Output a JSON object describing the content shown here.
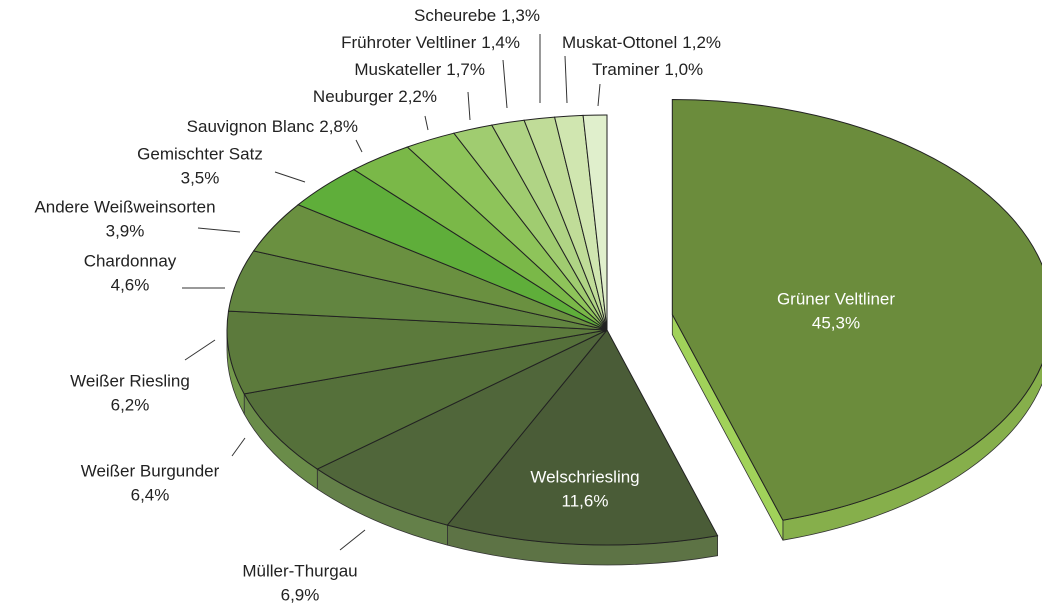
{
  "chart_data": {
    "type": "pie",
    "categories": [
      "Grüner Veltliner",
      "Welschriesling",
      "Müller-Thurgau",
      "Weißer Burgunder",
      "Weißer Riesling",
      "Chardonnay",
      "Andere Weißweinsorten",
      "Gemischter Satz",
      "Sauvignon Blanc",
      "Neuburger",
      "Muskateller",
      "Frühroter Veltliner",
      "Scheurebe",
      "Muskat-Ottonel",
      "Traminer"
    ],
    "values": [
      45.3,
      11.6,
      6.9,
      6.4,
      6.2,
      4.6,
      3.9,
      3.5,
      2.8,
      2.2,
      1.7,
      1.4,
      1.3,
      1.2,
      1.0
    ],
    "value_labels": [
      "45,3%",
      "11,6%",
      "6,9%",
      "6,4%",
      "6,2%",
      "4,6%",
      "3,9%",
      "3,5%",
      "2,8%",
      "2,2%",
      "1,7%",
      "1,4%",
      "1,3%",
      "1,2%",
      "1,0%"
    ],
    "colors": [
      "#6b8c3c",
      "#4a5c37",
      "#50663a",
      "#55703a",
      "#5c7a3c",
      "#628540",
      "#6a9040",
      "#5fae3a",
      "#7ab848",
      "#8ec45a",
      "#a0cc70",
      "#b0d485",
      "#c0dc98",
      "#d0e6b0",
      "#e0efcc"
    ]
  }
}
